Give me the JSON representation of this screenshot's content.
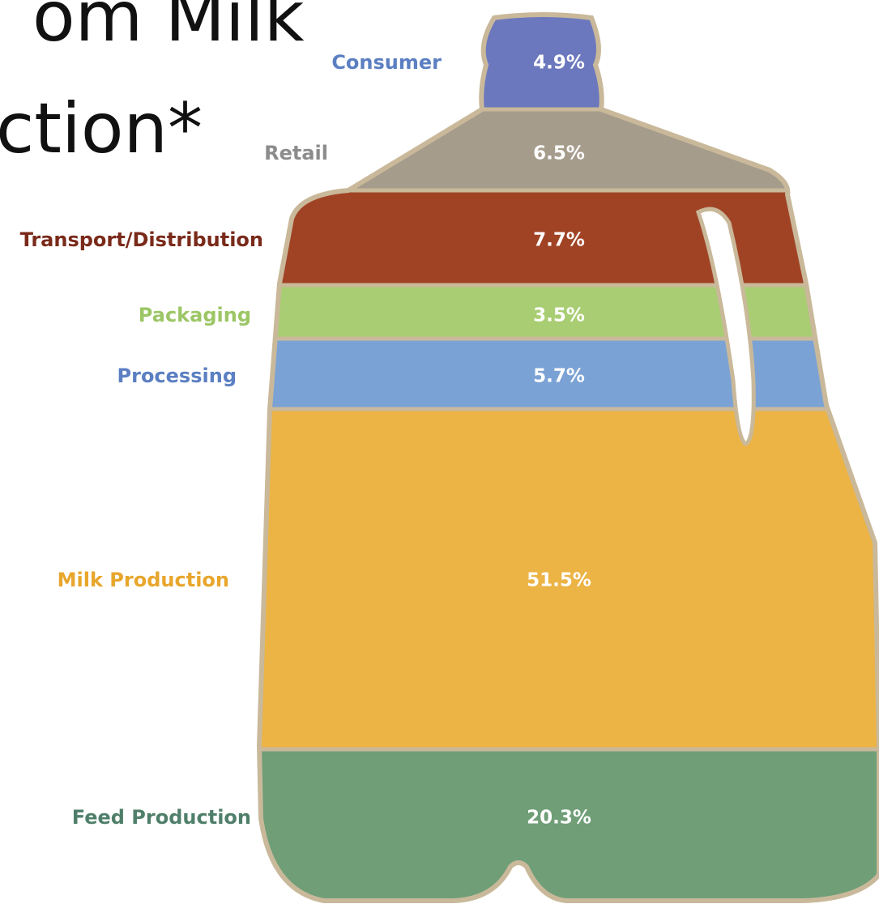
{
  "chart_data": {
    "type": "jug",
    "title_lines": [
      "om Milk",
      "ction*"
    ],
    "categories": [
      "Consumer",
      "Retail",
      "Transport/Distribution",
      "Packaging",
      "Processing",
      "Milk Production",
      "Feed Production"
    ],
    "values": [
      4.9,
      6.5,
      7.7,
      3.5,
      5.7,
      51.5,
      20.3
    ],
    "value_labels": [
      "4.9%",
      "6.5%",
      "7.7%",
      "3.5%",
      "5.7%",
      "51.5%",
      "20.3%"
    ],
    "colors": [
      "#6b78bd",
      "#a69c8c",
      "#a04325",
      "#a9cd72",
      "#7ba2d4",
      "#ecb345",
      "#6f9e77"
    ],
    "label_colors": [
      "#5b7fc2",
      "#8c8c8c",
      "#7a2a1a",
      "#9cc666",
      "#5b7fc2",
      "#e8a62c",
      "#4f7f6a"
    ]
  }
}
